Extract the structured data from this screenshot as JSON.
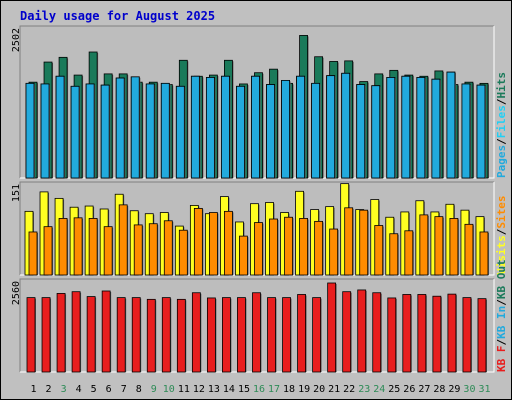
{
  "title": "Daily usage for August 2025",
  "colors": {
    "background": "#c0c0c0",
    "plot_area": "#bdbdbd",
    "title": "#0000cc",
    "hits": "#1a7a5a",
    "files": "#1fd0f5",
    "pages": "#22aadd",
    "visits": "#ffff22",
    "sites": "#ff8c00",
    "kb": "#e81e1e",
    "weekend_label": "#2e8b57",
    "weekday_label": "#000000"
  },
  "chart_data": [
    {
      "type": "bar",
      "panel": "top",
      "ymax_label": "2502",
      "ylim": [
        0,
        2502
      ],
      "legend": [
        {
          "name": "Pages",
          "color": "#22aadd"
        },
        {
          "name": "/",
          "color": "#000000"
        },
        {
          "name": "Files",
          "color": "#1fd0f5"
        },
        {
          "name": "/",
          "color": "#000000"
        },
        {
          "name": "Hits",
          "color": "#1a7a5a"
        }
      ],
      "categories": [
        "1",
        "2",
        "3",
        "4",
        "5",
        "6",
        "7",
        "8",
        "9",
        "10",
        "11",
        "12",
        "13",
        "14",
        "15",
        "16",
        "17",
        "18",
        "19",
        "20",
        "21",
        "22",
        "23",
        "24",
        "25",
        "26",
        "27",
        "28",
        "29",
        "30",
        "31"
      ],
      "series": [
        {
          "name": "Hits",
          "values": [
            1620,
            1960,
            2040,
            1740,
            2130,
            1760,
            1760,
            1620,
            1620,
            1580,
            1990,
            1720,
            1740,
            1990,
            1590,
            1780,
            1840,
            1600,
            2410,
            2050,
            1970,
            1980,
            1630,
            1760,
            1820,
            1740,
            1720,
            1810,
            1580,
            1620,
            1600
          ]
        },
        {
          "name": "Files",
          "values": [
            1600,
            1590,
            1720,
            1550,
            1590,
            1570,
            1690,
            1710,
            1590,
            1600,
            1550,
            1720,
            1700,
            1720,
            1550,
            1720,
            1580,
            1650,
            1720,
            1600,
            1730,
            1770,
            1580,
            1560,
            1700,
            1720,
            1700,
            1670,
            1790,
            1590,
            1570
          ]
        },
        {
          "name": "Pages",
          "values": [
            1600,
            1590,
            1720,
            1550,
            1590,
            1570,
            1690,
            1710,
            1590,
            1600,
            1550,
            1720,
            1700,
            1720,
            1550,
            1720,
            1580,
            1650,
            1720,
            1600,
            1730,
            1770,
            1580,
            1560,
            1700,
            1720,
            1700,
            1670,
            1790,
            1590,
            1570
          ]
        }
      ]
    },
    {
      "type": "bar",
      "panel": "middle",
      "ymax_label": "151",
      "ylim": [
        0,
        151
      ],
      "legend": [
        {
          "name": "Visits",
          "color": "#ffff22"
        },
        {
          "name": "/",
          "color": "#000000"
        },
        {
          "name": "Sites",
          "color": "#ff8c00"
        }
      ],
      "categories": [
        "1",
        "2",
        "3",
        "4",
        "5",
        "6",
        "7",
        "8",
        "9",
        "10",
        "11",
        "12",
        "13",
        "14",
        "15",
        "16",
        "17",
        "18",
        "19",
        "20",
        "21",
        "22",
        "23",
        "24",
        "25",
        "26",
        "27",
        "28",
        "29",
        "30",
        "31"
      ],
      "series": [
        {
          "name": "Visits",
          "values": [
            108,
            141,
            130,
            115,
            117,
            112,
            137,
            109,
            104,
            106,
            83,
            118,
            104,
            133,
            90,
            121,
            123,
            106,
            142,
            111,
            116,
            155,
            111,
            128,
            98,
            107,
            126,
            107,
            120,
            110,
            99
          ]
        },
        {
          "name": "Sites",
          "values": [
            73,
            82,
            96,
            97,
            96,
            82,
            119,
            85,
            87,
            92,
            76,
            113,
            106,
            108,
            66,
            89,
            95,
            98,
            96,
            91,
            78,
            114,
            110,
            84,
            70,
            75,
            102,
            99,
            96,
            86,
            73
          ]
        }
      ]
    },
    {
      "type": "bar",
      "panel": "bottom",
      "ymax_label": "2560",
      "ylim": [
        0,
        2560
      ],
      "legend": [
        {
          "name": "KB F",
          "color": "#e81e1e"
        },
        {
          "name": "/",
          "color": "#000000"
        },
        {
          "name": "KB In",
          "color": "#22aadd"
        },
        {
          "name": "/",
          "color": "#000000"
        },
        {
          "name": "KB Out",
          "color": "#1a7a5a"
        }
      ],
      "categories": [
        "1",
        "2",
        "3",
        "4",
        "5",
        "6",
        "7",
        "8",
        "9",
        "10",
        "11",
        "12",
        "13",
        "14",
        "15",
        "16",
        "17",
        "18",
        "19",
        "20",
        "21",
        "22",
        "23",
        "24",
        "25",
        "26",
        "27",
        "28",
        "29",
        "30",
        "31"
      ],
      "series": [
        {
          "name": "KB F",
          "values": [
            2140,
            2140,
            2260,
            2310,
            2170,
            2330,
            2140,
            2140,
            2090,
            2140,
            2090,
            2280,
            2130,
            2140,
            2140,
            2280,
            2140,
            2140,
            2230,
            2140,
            2560,
            2310,
            2360,
            2280,
            2130,
            2230,
            2230,
            2180,
            2240,
            2140,
            2110
          ]
        }
      ]
    }
  ],
  "x_labels": [
    {
      "text": "1",
      "weekend": false
    },
    {
      "text": "2",
      "weekend": false
    },
    {
      "text": "3",
      "weekend": true
    },
    {
      "text": "4",
      "weekend": false
    },
    {
      "text": "5",
      "weekend": false
    },
    {
      "text": "6",
      "weekend": false
    },
    {
      "text": "7",
      "weekend": false
    },
    {
      "text": "8",
      "weekend": false
    },
    {
      "text": "9",
      "weekend": true
    },
    {
      "text": "10",
      "weekend": true
    },
    {
      "text": "11",
      "weekend": false
    },
    {
      "text": "12",
      "weekend": false
    },
    {
      "text": "13",
      "weekend": false
    },
    {
      "text": "14",
      "weekend": false
    },
    {
      "text": "15",
      "weekend": false
    },
    {
      "text": "16",
      "weekend": true
    },
    {
      "text": "17",
      "weekend": true
    },
    {
      "text": "18",
      "weekend": false
    },
    {
      "text": "19",
      "weekend": false
    },
    {
      "text": "20",
      "weekend": false
    },
    {
      "text": "21",
      "weekend": false
    },
    {
      "text": "22",
      "weekend": false
    },
    {
      "text": "23",
      "weekend": true
    },
    {
      "text": "24",
      "weekend": true
    },
    {
      "text": "25",
      "weekend": false
    },
    {
      "text": "26",
      "weekend": false
    },
    {
      "text": "27",
      "weekend": false
    },
    {
      "text": "28",
      "weekend": false
    },
    {
      "text": "29",
      "weekend": false
    },
    {
      "text": "30",
      "weekend": true
    },
    {
      "text": "31",
      "weekend": true
    }
  ]
}
